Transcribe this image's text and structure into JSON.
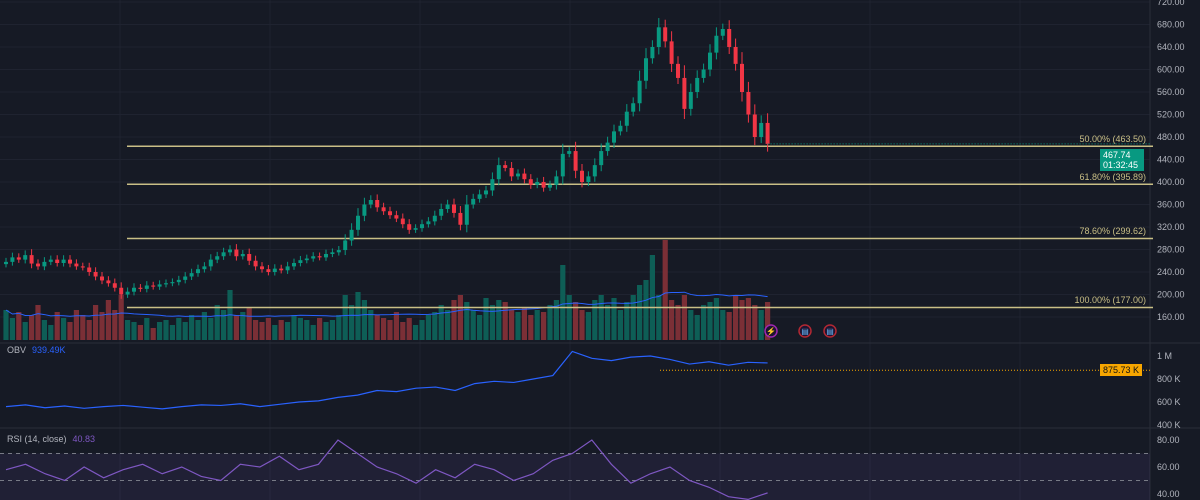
{
  "chart_data": {
    "type": "candlestick",
    "price_axis": {
      "min": 160,
      "max": 720,
      "step": 40,
      "ticks": [
        "720.00",
        "680.00",
        "640.00",
        "600.00",
        "560.00",
        "520.00",
        "480.00",
        "440.00",
        "400.00",
        "360.00",
        "320.00",
        "280.00",
        "240.00",
        "200.00",
        "160.00"
      ]
    },
    "close": [
      258,
      266,
      262,
      270,
      255,
      250,
      258,
      262,
      256,
      262,
      255,
      250,
      248,
      240,
      232,
      225,
      220,
      212,
      200,
      205,
      212,
      210,
      216,
      214,
      218,
      220,
      222,
      226,
      232,
      238,
      245,
      250,
      262,
      268,
      275,
      280,
      268,
      272,
      260,
      250,
      245,
      240,
      246,
      243,
      250,
      256,
      261,
      264,
      268,
      266,
      272,
      275,
      279,
      296,
      315,
      340,
      360,
      368,
      355,
      348,
      341,
      335,
      325,
      315,
      318,
      325,
      330,
      340,
      352,
      360,
      345,
      324,
      360,
      370,
      378,
      385,
      405,
      430,
      425,
      410,
      415,
      405,
      395,
      400,
      390,
      395,
      410,
      450,
      455,
      420,
      400,
      410,
      430,
      455,
      470,
      490,
      500,
      525,
      540,
      580,
      620,
      640,
      675,
      650,
      610,
      585,
      530,
      560,
      585,
      600,
      630,
      660,
      672,
      640,
      610,
      560,
      520,
      480,
      505,
      467.74
    ],
    "volume": [
      30,
      22,
      28,
      18,
      25,
      35,
      20,
      15,
      28,
      22,
      18,
      30,
      25,
      20,
      35,
      28,
      40,
      30,
      45,
      20,
      18,
      15,
      22,
      12,
      18,
      20,
      15,
      22,
      18,
      25,
      20,
      28,
      22,
      35,
      30,
      50,
      25,
      28,
      32,
      20,
      18,
      22,
      15,
      20,
      18,
      25,
      22,
      20,
      15,
      22,
      18,
      20,
      25,
      45,
      35,
      48,
      40,
      30,
      25,
      22,
      20,
      28,
      18,
      22,
      15,
      20,
      25,
      28,
      35,
      30,
      40,
      45,
      38,
      30,
      25,
      42,
      35,
      40,
      38,
      30,
      28,
      32,
      25,
      30,
      28,
      35,
      40,
      75,
      45,
      38,
      30,
      28,
      40,
      45,
      35,
      42,
      30,
      38,
      45,
      55,
      60,
      85,
      45,
      100,
      40,
      35,
      45,
      30,
      25,
      35,
      38,
      42,
      30,
      28,
      45,
      40,
      42,
      35,
      30,
      38
    ],
    "volume_ma_window": 20,
    "fib_levels": [
      {
        "label": "50.00% (463.50)",
        "price": 463.5
      },
      {
        "label": "61.80% (395.89)",
        "price": 395.89
      },
      {
        "label": "78.60% (299.62)",
        "price": 299.62
      },
      {
        "label": "100.00% (177.00)",
        "price": 177.0
      }
    ],
    "last_price": "467.74",
    "countdown": "01:32:45",
    "colors": {
      "up": "#089981",
      "down": "#f23645",
      "fib": "#c9bf86",
      "obv": "#2962ff",
      "rsi": "#7e57c2",
      "bg": "#161a25"
    },
    "obv": {
      "label": "OBV",
      "value": "939.49K",
      "unit": "K",
      "series": [
        560,
        575,
        550,
        565,
        545,
        560,
        570,
        555,
        540,
        560,
        575,
        570,
        585,
        560,
        580,
        600,
        610,
        640,
        660,
        700,
        690,
        720,
        730,
        700,
        760,
        780,
        770,
        800,
        830,
        1040,
        980,
        960,
        990,
        1000,
        970,
        930,
        950,
        920,
        945,
        939.49
      ],
      "ref_value": 875.73,
      "ref_label": "875.73 K",
      "ticks": [
        "1 M",
        "800 K",
        "600 K",
        "400 K"
      ]
    },
    "rsi": {
      "label": "RSI (14, close)",
      "value": "40.83",
      "series": [
        58,
        62,
        55,
        50,
        60,
        52,
        58,
        62,
        55,
        60,
        53,
        50,
        62,
        60,
        68,
        58,
        62,
        80,
        70,
        60,
        55,
        48,
        58,
        52,
        62,
        58,
        50,
        55,
        65,
        70,
        80,
        62,
        48,
        55,
        60,
        50,
        45,
        38,
        36,
        40.83
      ],
      "upper": 70,
      "middle": 50,
      "lower": 30,
      "ticks": [
        "80.00",
        "60.00",
        "40.00"
      ]
    },
    "events": [
      "lightning-icon",
      "us-flag-icon",
      "us-flag-icon"
    ]
  }
}
